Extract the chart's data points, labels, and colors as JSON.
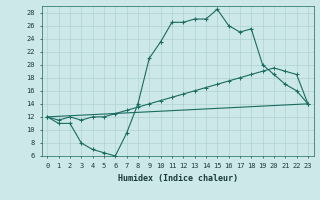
{
  "xlabel": "Humidex (Indice chaleur)",
  "background_color": "#cde8e8",
  "line_color": "#1a6b60",
  "xlim": [
    -0.5,
    23.5
  ],
  "ylim": [
    6,
    29
  ],
  "yticks": [
    6,
    8,
    10,
    12,
    14,
    16,
    18,
    20,
    22,
    24,
    26,
    28
  ],
  "xticks": [
    0,
    1,
    2,
    3,
    4,
    5,
    6,
    7,
    8,
    9,
    10,
    11,
    12,
    13,
    14,
    15,
    16,
    17,
    18,
    19,
    20,
    21,
    22,
    23
  ],
  "line1_x": [
    0,
    1,
    2,
    3,
    4,
    5,
    6,
    7,
    8,
    9,
    10,
    11,
    12,
    13,
    14,
    15,
    16,
    17,
    18,
    19,
    20,
    21,
    22,
    23
  ],
  "line1_y": [
    12,
    11,
    11,
    8,
    7,
    6.5,
    6,
    9.5,
    14,
    21,
    23.5,
    26.5,
    26.5,
    27,
    27,
    28.5,
    26,
    25,
    25.5,
    20,
    18.5,
    17,
    16,
    14
  ],
  "line2_x": [
    0,
    1,
    2,
    3,
    4,
    5,
    6,
    7,
    8,
    9,
    10,
    11,
    12,
    13,
    14,
    15,
    16,
    17,
    18,
    19,
    20,
    21,
    22,
    23
  ],
  "line2_y": [
    12,
    11.5,
    12,
    11.5,
    12,
    12,
    12.5,
    13,
    13.5,
    14,
    14.5,
    15,
    15.5,
    16,
    16.5,
    17,
    17.5,
    18,
    18.5,
    19,
    19.5,
    19,
    18.5,
    14
  ],
  "line3_x": [
    0,
    23
  ],
  "line3_y": [
    12,
    14
  ],
  "grid_color": "#aacccc",
  "tick_fontsize": 5,
  "xlabel_fontsize": 6
}
